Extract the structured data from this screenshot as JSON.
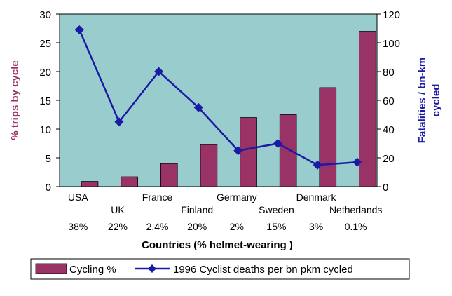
{
  "chart_data": {
    "type": "bar",
    "categories": [
      "USA",
      "UK",
      "France",
      "Finland",
      "Germany",
      "Sweden",
      "Denmark",
      "Netherlands"
    ],
    "helmet_wearing": [
      "38%",
      "22%",
      "2.4%",
      "20%",
      "2%",
      "15%",
      "3%",
      "0.1%"
    ],
    "series": [
      {
        "name": "Cycling %",
        "type": "bar",
        "axis": "left",
        "color": "#993366",
        "values": [
          0.9,
          1.7,
          4.0,
          7.3,
          12.0,
          12.5,
          17.2,
          27.0
        ]
      },
      {
        "name": "1996 Cyclist deaths per bn pkm cycled",
        "type": "line",
        "axis": "right",
        "color": "#1a1aa6",
        "values": [
          109,
          45,
          80,
          55,
          25,
          30,
          15,
          17
        ]
      }
    ],
    "xlabel": "Countries (% helmet-wearing )",
    "ylabel": "% trips by cycle",
    "y2label_line1": "Fatalities / bn-km",
    "y2label_line2": "cycled",
    "ylim": [
      0,
      30
    ],
    "y2lim": [
      0,
      120
    ],
    "yticks": [
      "0",
      "5",
      "10",
      "15",
      "20",
      "25",
      "30"
    ],
    "y2ticks": [
      "0",
      "20",
      "40",
      "60",
      "80",
      "100",
      "120"
    ],
    "plot_background": "#99cccc",
    "grid": false,
    "legend_position": "bottom"
  }
}
